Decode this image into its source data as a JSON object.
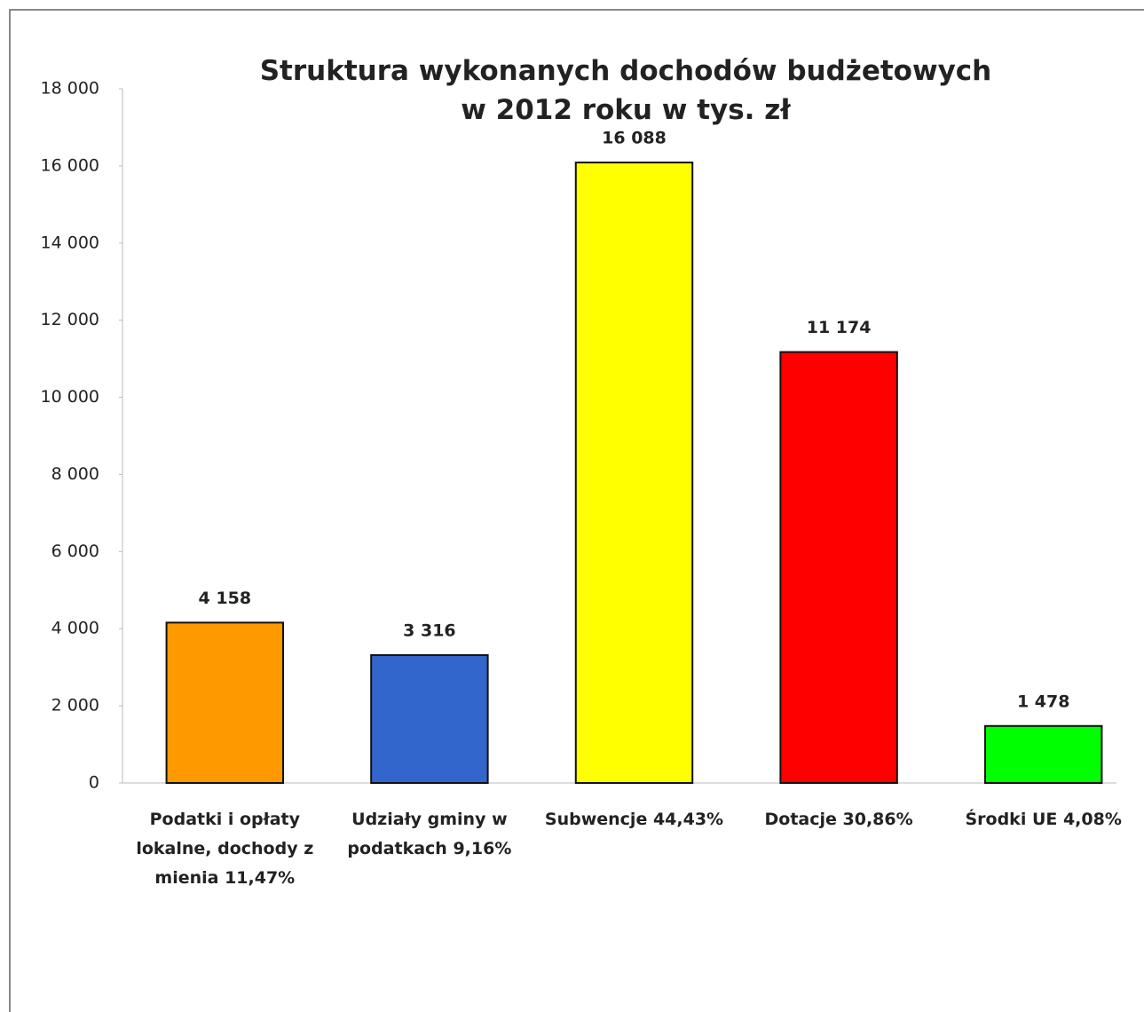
{
  "chart_data": {
    "type": "bar",
    "title": "Struktura wykonanych dochodów budżetowych w 2012 roku w tys. zł",
    "categories": [
      "Podatki i opłaty lokalne, dochody z mienia 11,47%",
      "Udziały gminy w podatkach 9,16%",
      "Subwencje 44,43%",
      "Dotacje 30,86%",
      "Środki UE 4,08%"
    ],
    "values": [
      4158,
      3316,
      16088,
      11174,
      1478
    ],
    "value_labels": [
      "4 158",
      "3 316",
      "16 088",
      "11 174",
      "1 478"
    ],
    "colors": [
      "#ff9900",
      "#3366cc",
      "#ffff00",
      "#ff0000",
      "#00ff00"
    ],
    "ylim": [
      0,
      18000
    ],
    "yticks": [
      0,
      {
        "value": 2000,
        "label": "2 000"
      },
      {
        "value": 4000,
        "label": "4 000"
      },
      {
        "value": 6000,
        "label": "6 000"
      },
      {
        "value": 8000,
        "label": "8 000"
      },
      {
        "value": 10000,
        "label": "10 000"
      },
      {
        "value": 12000,
        "label": "12 000"
      },
      {
        "value": 14000,
        "label": "14 000"
      },
      {
        "value": 16000,
        "label": "16 000"
      },
      {
        "value": 18000,
        "label": "18 000"
      }
    ],
    "grid": false
  }
}
